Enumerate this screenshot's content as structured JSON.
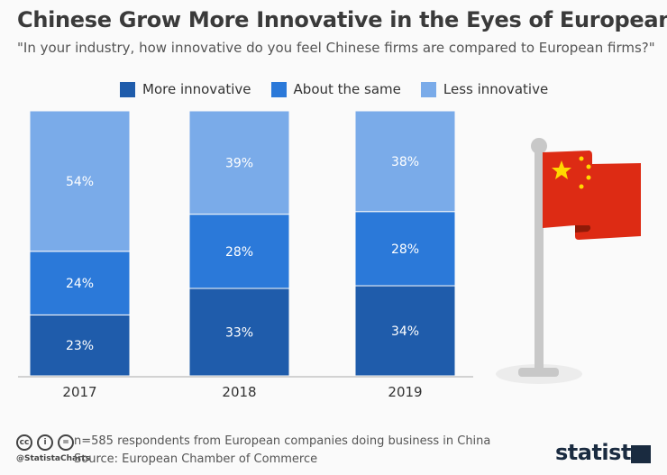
{
  "header": {
    "title": "Chinese Grow More Innovative in the Eyes of Europeans",
    "subtitle": "\"In your industry, how innovative do you feel Chinese firms are compared to European firms?\""
  },
  "chart_data": {
    "type": "bar",
    "stacked": true,
    "categories": [
      "2017",
      "2018",
      "2019"
    ],
    "series": [
      {
        "name": "More innovative",
        "values": [
          23,
          33,
          34
        ],
        "color": "#1f5cab"
      },
      {
        "name": "About the same",
        "values": [
          24,
          28,
          28
        ],
        "color": "#2b79d9"
      },
      {
        "name": "Less innovative",
        "values": [
          54,
          39,
          38
        ],
        "color": "#7aabe9"
      }
    ],
    "value_suffix": "%",
    "ylim": [
      0,
      100
    ],
    "grid": false,
    "legend_position": "top"
  },
  "footer": {
    "note": "n=585 respondents from European companies doing business in China",
    "source": "Source: European Chamber of Commerce",
    "handle": "@StatistaCharts",
    "logo": "statista"
  },
  "icons": {
    "flag": "china-flag-icon",
    "license": [
      "cc-icon",
      "by-icon",
      "nd-icon"
    ]
  }
}
